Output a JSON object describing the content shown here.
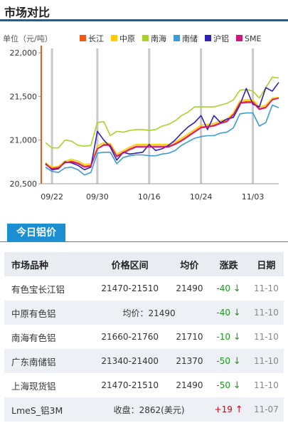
{
  "header": {
    "title": "市场对比"
  },
  "chart_data": {
    "type": "line",
    "ylabel": "单位（元/吨）",
    "ylim": [
      20500,
      22000
    ],
    "yticks": [
      "20,500",
      "21,000",
      "21,500",
      "22,000"
    ],
    "yticks_values": [
      20500,
      21000,
      21500,
      22000
    ],
    "xticks": [
      "09/22",
      "09/30",
      "10/16",
      "10/24",
      "11/03"
    ],
    "xticks_index": [
      1,
      8,
      16,
      24,
      32
    ],
    "legend_position": "top",
    "grid": false,
    "series": [
      {
        "name": "长江",
        "color": "#f25a14",
        "values": [
          20730,
          20680,
          20690,
          20740,
          20760,
          20740,
          20700,
          20710,
          20900,
          20950,
          20950,
          20820,
          20860,
          20900,
          20930,
          20930,
          20930,
          20930,
          20930,
          20930,
          20960,
          21000,
          21050,
          21100,
          21150,
          21160,
          21170,
          21200,
          21220,
          21300,
          21430,
          21440,
          21440,
          21360,
          21380,
          21470,
          21490
        ]
      },
      {
        "name": "中原",
        "color": "#ffcc00",
        "values": [
          20740,
          20690,
          20700,
          20760,
          20780,
          20760,
          20720,
          20730,
          20930,
          20970,
          20960,
          20840,
          20880,
          20920,
          20950,
          20950,
          20950,
          20950,
          20950,
          20950,
          20980,
          21020,
          21070,
          21120,
          21170,
          21180,
          21190,
          21220,
          21240,
          21310,
          21450,
          21460,
          21460,
          21380,
          21400,
          21480,
          21490
        ]
      },
      {
        "name": "南海",
        "color": "#a8d42a",
        "values": [
          20970,
          20910,
          20910,
          21000,
          20990,
          20940,
          20930,
          20940,
          21200,
          21210,
          21050,
          21100,
          21090,
          21110,
          21120,
          21120,
          21110,
          21120,
          21160,
          21180,
          21220,
          21280,
          21320,
          21380,
          21380,
          21380,
          21380,
          21400,
          21420,
          21460,
          21570,
          21580,
          21560,
          21480,
          21600,
          21720,
          21710
        ]
      },
      {
        "name": "南储",
        "color": "#3d9bd6",
        "values": [
          20690,
          20640,
          20630,
          20680,
          20690,
          20660,
          20600,
          20630,
          20850,
          20860,
          20860,
          20730,
          20800,
          20820,
          20830,
          20830,
          20820,
          20820,
          20840,
          20850,
          20880,
          20940,
          20980,
          21020,
          21040,
          21050,
          21050,
          21080,
          21090,
          21140,
          21300,
          21310,
          21310,
          21160,
          21200,
          21400,
          21370
        ]
      },
      {
        "name": "沪铝",
        "color": "#3020b8",
        "values": [
          20730,
          20660,
          20670,
          20750,
          20740,
          20710,
          20660,
          20690,
          21100,
          21000,
          20920,
          20770,
          20860,
          20840,
          20850,
          20860,
          20950,
          20880,
          20900,
          20940,
          21000,
          21080,
          21150,
          21200,
          21280,
          21120,
          21280,
          21200,
          21240,
          21260,
          21400,
          21590,
          21410,
          21380,
          21600,
          21560,
          21660
        ]
      },
      {
        "name": "SME",
        "color": "#d0187a",
        "values": [
          20720,
          20670,
          20680,
          20740,
          20750,
          20730,
          20690,
          20700,
          20900,
          20940,
          20940,
          20810,
          20850,
          20890,
          20920,
          20920,
          20920,
          20920,
          20920,
          20920,
          20950,
          20990,
          21040,
          21090,
          21140,
          21150,
          21160,
          21190,
          21210,
          21290,
          21420,
          21430,
          21430,
          21350,
          21370,
          21460,
          21480
        ]
      }
    ]
  },
  "today": {
    "tab_label": "今日铝价",
    "headers": [
      "市场品种",
      "价格区间",
      "均价",
      "涨跌",
      "日期"
    ],
    "rows": [
      {
        "name": "有色宝长江铝",
        "range": "21470-21510",
        "avg": "21490",
        "change": "-40",
        "arrow": "↓",
        "date": "11-10",
        "up": false
      },
      {
        "name": "中原有色铝",
        "merged": "均价：21490",
        "change": "-40",
        "arrow": "↓",
        "date": "11-10",
        "up": false
      },
      {
        "name": "南海有色铝",
        "range": "21660-21760",
        "avg": "21710",
        "change": "-10",
        "arrow": "↓",
        "date": "11-10",
        "up": false
      },
      {
        "name": "广东南储铝",
        "range": "21340-21400",
        "avg": "21370",
        "change": "-50",
        "arrow": "↓",
        "date": "11-10",
        "up": false
      },
      {
        "name": "上海现货铝",
        "range": "21470-21510",
        "avg": "21490",
        "change": "-50",
        "arrow": "↓",
        "date": "11-10",
        "up": false
      },
      {
        "name": "LmeS_铝3M",
        "merged": "收盘：2862(美元)",
        "change": "+19",
        "arrow": "↑",
        "date": "11-07",
        "up": true
      }
    ]
  }
}
